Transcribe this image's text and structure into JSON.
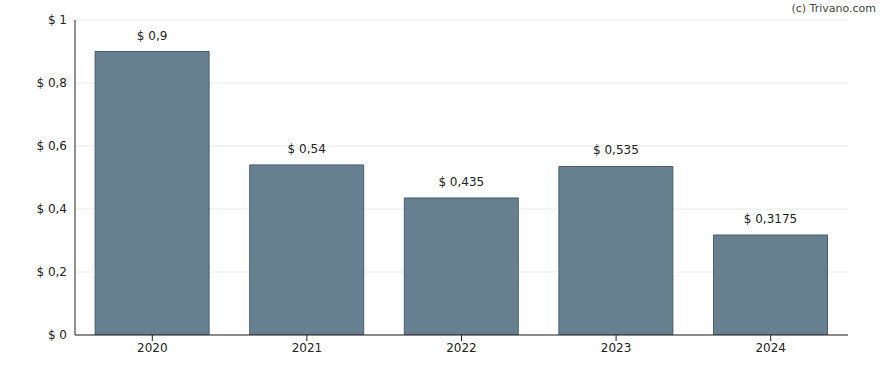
{
  "chart_data": {
    "type": "bar",
    "annotations": [
      "(c) Trivano.com"
    ],
    "categories": [
      "2020",
      "2021",
      "2022",
      "2023",
      "2024"
    ],
    "values": [
      0.9,
      0.54,
      0.435,
      0.535,
      0.3175
    ],
    "value_labels": [
      "$ 0,9",
      "$ 0,54",
      "$ 0,435",
      "$ 0,535",
      "$ 0,3175"
    ],
    "data_labels": true,
    "color": "#67808f",
    "ylim": [
      0,
      1
    ],
    "yticks": [
      {
        "value": 0,
        "label": "$ 0"
      },
      {
        "value": 0.2,
        "label": "$ 0,2"
      },
      {
        "value": 0.4,
        "label": "$ 0,4"
      },
      {
        "value": 0.6,
        "label": "$ 0,6"
      },
      {
        "value": 0.8,
        "label": "$ 0,8"
      },
      {
        "value": 1,
        "label": "$ 1"
      }
    ],
    "grid": true
  }
}
